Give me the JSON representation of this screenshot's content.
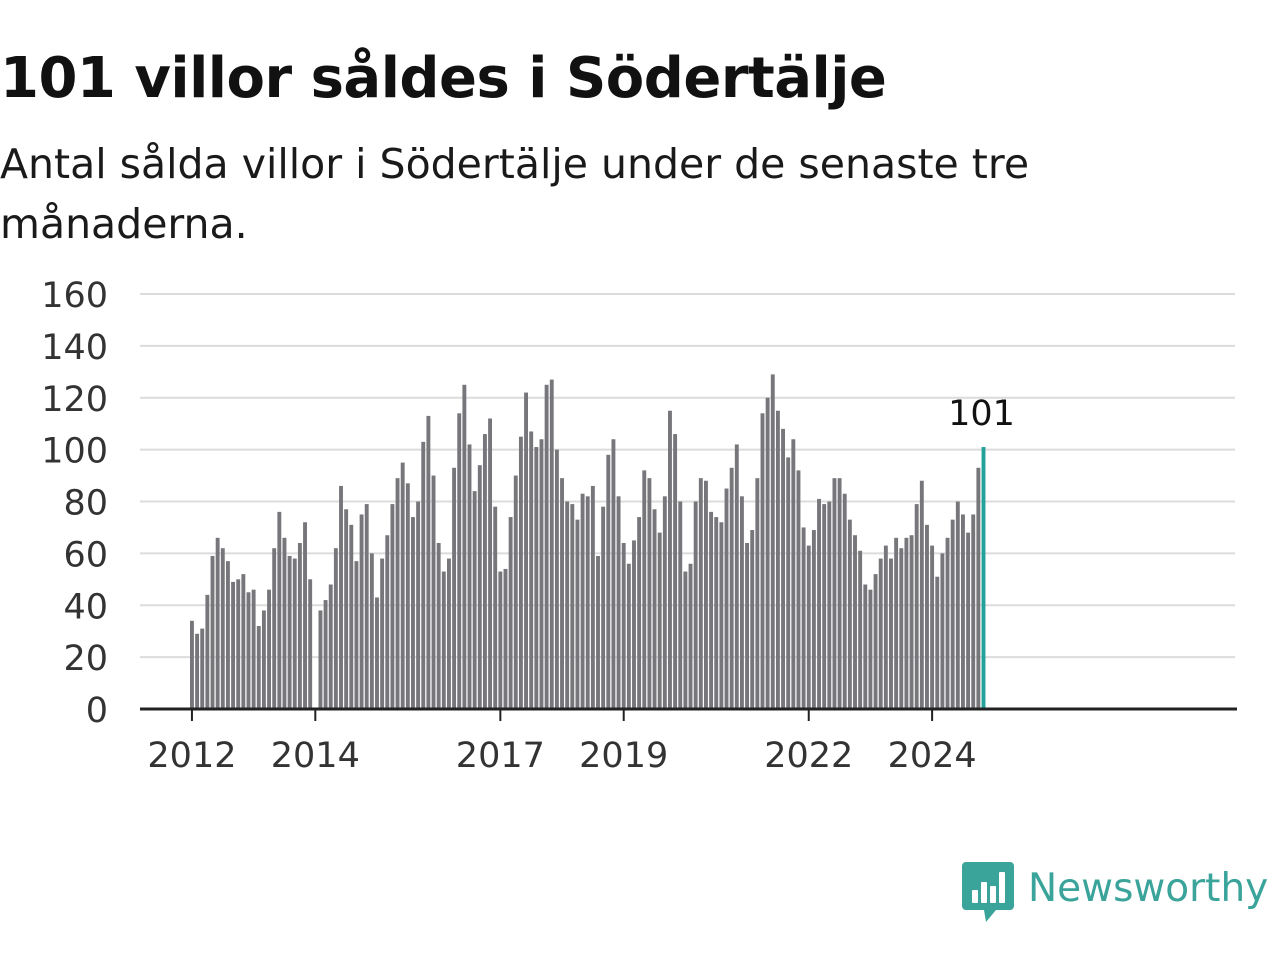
{
  "header": {
    "title": "101 villor såldes i Södertälje",
    "subtitle": "Antal sålda villor i Södertälje under de senaste tre månaderna."
  },
  "brand": {
    "name": "Newsworthy",
    "icon": "newsworthy-bar-chart-icon",
    "color": "#3aa39a"
  },
  "colors": {
    "bar": "#77767b",
    "highlight": "#22a29a",
    "grid": "#dcdcdc",
    "axis": "#222222"
  },
  "chart_data": {
    "type": "bar",
    "title": "101 villor såldes i Södertälje",
    "subtitle": "Antal sålda villor i Södertälje under de senaste tre månaderna.",
    "xlabel": "",
    "ylabel": "",
    "ylim": [
      0,
      160
    ],
    "yticks": [
      0,
      20,
      40,
      60,
      80,
      100,
      120,
      140,
      160
    ],
    "xtick_labels": [
      "2012",
      "2014",
      "2017",
      "2019",
      "2022",
      "2024"
    ],
    "grid": true,
    "legend": "none",
    "highlight_label": "101",
    "series": [
      {
        "values": [
          34,
          29,
          31,
          44,
          59,
          66,
          62,
          57,
          49,
          50,
          52,
          45,
          46,
          32,
          38,
          46,
          62,
          76,
          66,
          59,
          58,
          64,
          72,
          50,
          0,
          38,
          42,
          48,
          62,
          86,
          77,
          71,
          57,
          75,
          79,
          60,
          43,
          58,
          67,
          79,
          89,
          95,
          87,
          74,
          80,
          103,
          113,
          90,
          64,
          53,
          58,
          93,
          114,
          125,
          102,
          84,
          94,
          106,
          112,
          78,
          53,
          54,
          74,
          90,
          105,
          122,
          107,
          101,
          104,
          125,
          127,
          100,
          89,
          80,
          79,
          73,
          83,
          82,
          86,
          59,
          78,
          98,
          104,
          82,
          64,
          56,
          65,
          74,
          92,
          89,
          77,
          68,
          82,
          115,
          106,
          80,
          53,
          56,
          80,
          89,
          88,
          76,
          74,
          72,
          85,
          93,
          102,
          82,
          64,
          69,
          89,
          114,
          120,
          129,
          115,
          108,
          97,
          104,
          92,
          70,
          63,
          69,
          81,
          79,
          80,
          89,
          89,
          83,
          73,
          67,
          61,
          48,
          46,
          52,
          58,
          63,
          58,
          66,
          62,
          66,
          67,
          79,
          88,
          71,
          63,
          51,
          60,
          66,
          73,
          80,
          75,
          68,
          75,
          93,
          101
        ]
      }
    ]
  }
}
